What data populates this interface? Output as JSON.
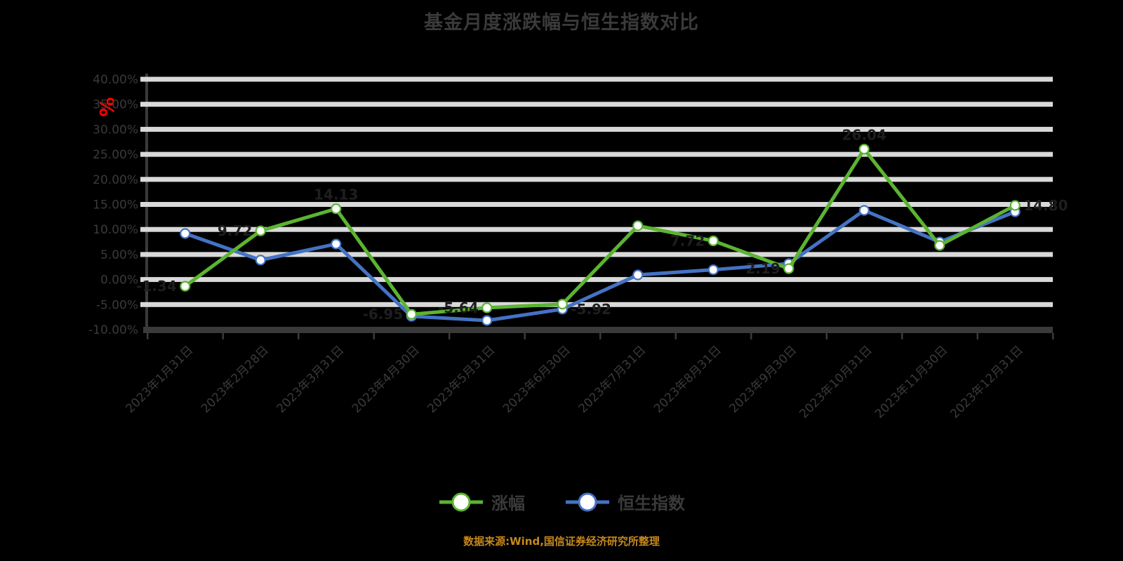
{
  "title": "基金月度涨跌幅与恒生指数对比",
  "y_axis_unit": "%",
  "caption": "数据来源:Wind,国信证券经济研究所整理",
  "colors": {
    "background": "#000000",
    "grid": "#D9D9D9",
    "axis": "#3A3A3A",
    "text": "#3A3A3A",
    "data_label": "#1E1E1E",
    "y_unit_red": "#FF0000",
    "caption_orange": "#C5881C",
    "series_green": "#5BB431",
    "series_blue": "#4472C4"
  },
  "chart_data": {
    "type": "line",
    "title": "基金月度涨跌幅与恒生指数对比",
    "xlabel": "",
    "ylabel": "%",
    "ylim": [
      -10,
      40
    ],
    "ytick_step": 5,
    "ytick_format": "0.00%",
    "grid": true,
    "legend_position": "bottom",
    "categories": [
      "2023年1月31日",
      "2023年2月28日",
      "2023年3月31日",
      "2023年4月30日",
      "2023年5月31日",
      "2023年6月30日",
      "2023年7月31日",
      "2023年8月31日",
      "2023年9月30日",
      "2023年10月31日",
      "2023年11月30日",
      "2023年12月31日"
    ],
    "series": [
      {
        "name": "涨幅",
        "color": "#5BB431",
        "values": [
          -1.34,
          9.72,
          14.13,
          -6.95,
          -5.64,
          -4.92,
          10.74,
          7.72,
          2.19,
          26.04,
          6.81,
          14.8
        ],
        "labels": [
          "-1.34",
          "9.72",
          "14.13",
          "-6.95",
          "-5.64",
          null,
          null,
          "7.72",
          "2.19",
          "26.04",
          null,
          "14.80"
        ],
        "label_positions": [
          "left",
          "left",
          "above",
          "left",
          "left",
          null,
          null,
          "left",
          "left",
          "above",
          null,
          "right"
        ]
      },
      {
        "name": "恒生指数",
        "color": "#4472C4",
        "values": [
          9.19,
          3.88,
          7.09,
          -7.34,
          -8.18,
          -5.92,
          0.92,
          1.95,
          3.17,
          13.81,
          7.5,
          13.53
        ],
        "labels": [
          null,
          null,
          null,
          null,
          null,
          "-5.92",
          null,
          null,
          null,
          null,
          null,
          null
        ],
        "label_positions": [
          null,
          null,
          null,
          null,
          null,
          "right",
          null,
          null,
          null,
          null,
          null,
          null
        ]
      }
    ]
  }
}
